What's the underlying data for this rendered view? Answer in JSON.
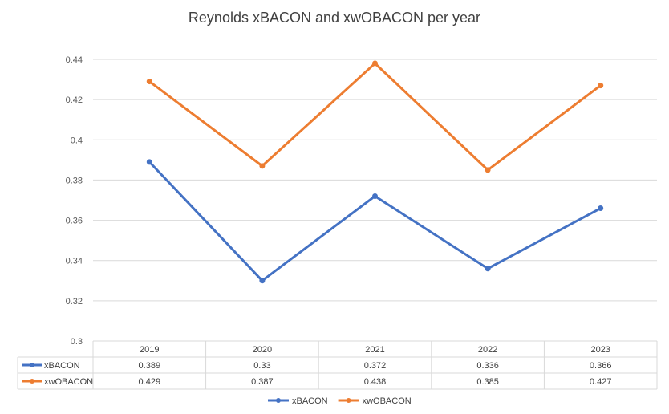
{
  "chart_data": {
    "type": "line",
    "title": "Reynolds xBACON and xwOBACON per year",
    "categories": [
      "2019",
      "2020",
      "2021",
      "2022",
      "2023"
    ],
    "series": [
      {
        "name": "xBACON",
        "color": "#4472C4",
        "values": [
          0.389,
          0.33,
          0.372,
          0.336,
          0.366
        ],
        "labels": [
          "0.389",
          "0.33",
          "0.372",
          "0.336",
          "0.366"
        ]
      },
      {
        "name": "xwOBACON",
        "color": "#ED7D31",
        "values": [
          0.429,
          0.387,
          0.438,
          0.385,
          0.427
        ],
        "labels": [
          "0.429",
          "0.387",
          "0.438",
          "0.385",
          "0.427"
        ]
      }
    ],
    "ylim": [
      0.3,
      0.44
    ],
    "yticks": [
      "0.3",
      "0.32",
      "0.34",
      "0.36",
      "0.38",
      "0.4",
      "0.42",
      "0.44"
    ],
    "grid": true,
    "data_table": true,
    "legend": "bottom"
  }
}
